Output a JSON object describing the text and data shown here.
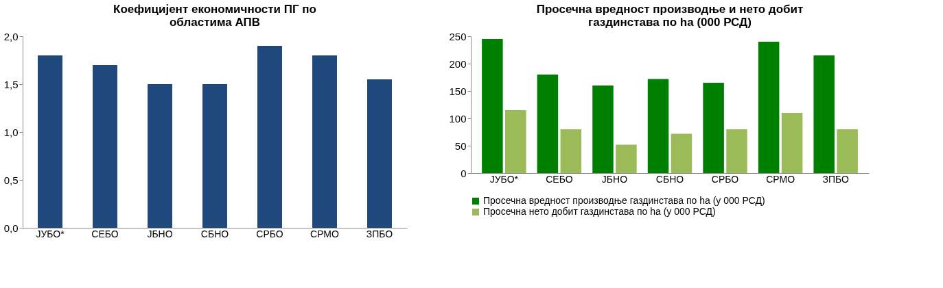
{
  "chart_data": [
    {
      "type": "bar",
      "title": "Коефицијент економичности ПГ по областима АПВ",
      "categories": [
        "ЈУБО*",
        "СЕБО",
        "ЈБНО",
        "СБНО",
        "СРБО",
        "СРМО",
        "ЗПБО"
      ],
      "series": [
        {
          "color": "#1f497d",
          "values": [
            1.8,
            1.7,
            1.5,
            1.5,
            1.9,
            1.8,
            1.55
          ]
        }
      ],
      "ylim": [
        0,
        2
      ],
      "yticks": [
        {
          "value": 0,
          "label": "0,0"
        },
        {
          "value": 0.5,
          "label": "0,5"
        },
        {
          "value": 1,
          "label": "1,0"
        },
        {
          "value": 1.5,
          "label": "1,5"
        },
        {
          "value": 2,
          "label": "2,0"
        }
      ],
      "grid": false,
      "legend": false
    },
    {
      "type": "bar",
      "title": "Просечна вредност производње и нето добит газдинстава по ha (000 РСД)",
      "categories": [
        "ЈУБО*",
        "СЕБО",
        "ЈБНО",
        "СБНО",
        "СРБО",
        "СРМО",
        "ЗПБО"
      ],
      "series": [
        {
          "name": "Просечна вредност производње газдинстава по ha (у 000 РСД)",
          "color": "#008000",
          "values": [
            245,
            180,
            160,
            172,
            165,
            240,
            215
          ]
        },
        {
          "name": "Просечна нето добит газдинстава по ha (у 000 РСД)",
          "color": "#9bbb59",
          "values": [
            115,
            80,
            52,
            72,
            80,
            110,
            80
          ]
        }
      ],
      "ylim": [
        0,
        250
      ],
      "yticks": [
        0,
        50,
        100,
        150,
        200,
        250
      ],
      "grid": false,
      "legend": "bottom"
    }
  ]
}
